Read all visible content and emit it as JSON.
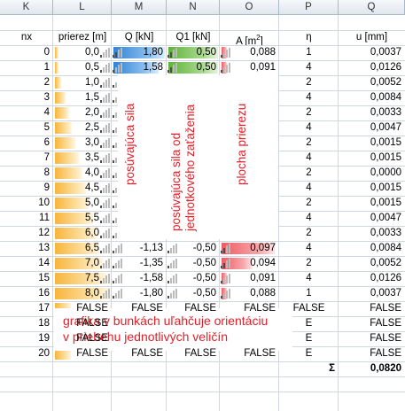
{
  "columns": [
    "K",
    "L",
    "M",
    "N",
    "O",
    "P",
    "Q"
  ],
  "headers": {
    "nx": "nx",
    "prierez": "prierez [m]",
    "q": "Q [kN]",
    "q1": "Q1 [kN]",
    "a": "A [m",
    "a_sup": "2",
    "a_end": "]",
    "eta": "η",
    "u": "u [mm]"
  },
  "rows": [
    {
      "nx": "0",
      "l": "0,0",
      "lf": 0.0,
      "q": "1,80",
      "qf": 1.0,
      "q1": "0,50",
      "q1f": 1.0,
      "a": "0,088",
      "af": 0.1,
      "p": "1",
      "u": "0,0037"
    },
    {
      "nx": "1",
      "l": "0,5",
      "lf": 0.06,
      "q": "1,58",
      "qf": 0.88,
      "q1": "0,50",
      "q1f": 1.0,
      "a": "0,091",
      "af": 0.1,
      "p": "4",
      "u": "0,0126"
    },
    {
      "nx": "2",
      "l": "1,0",
      "lf": 0.12,
      "q": "",
      "qf": 0,
      "q1": "",
      "q1f": 0,
      "a": "",
      "af": 0,
      "p": "2",
      "u": "0,0052"
    },
    {
      "nx": "3",
      "l": "1,5",
      "lf": 0.19,
      "q": "",
      "qf": 0,
      "q1": "",
      "q1f": 0,
      "a": "",
      "af": 0,
      "p": "4",
      "u": "0,0084"
    },
    {
      "nx": "4",
      "l": "2,0",
      "lf": 0.25,
      "q": "",
      "qf": 0,
      "q1": "",
      "q1f": 0,
      "a": "",
      "af": 0,
      "p": "2",
      "u": "0,0033"
    },
    {
      "nx": "5",
      "l": "2,5",
      "lf": 0.31,
      "q": "",
      "qf": 0,
      "q1": "",
      "q1f": 0,
      "a": "",
      "af": 0,
      "p": "4",
      "u": "0,0047"
    },
    {
      "nx": "6",
      "l": "3,0",
      "lf": 0.37,
      "q": "",
      "qf": 0,
      "q1": "",
      "q1f": 0,
      "a": "",
      "af": 0,
      "p": "2",
      "u": "0,0015"
    },
    {
      "nx": "7",
      "l": "3,5",
      "lf": 0.44,
      "q": "",
      "qf": 0,
      "q1": "",
      "q1f": 0,
      "a": "",
      "af": 0,
      "p": "4",
      "u": "0,0015"
    },
    {
      "nx": "8",
      "l": "4,0",
      "lf": 0.5,
      "q": "",
      "qf": 0,
      "q1": "",
      "q1f": 0,
      "a": "",
      "af": 0,
      "p": "2",
      "u": "0,0000"
    },
    {
      "nx": "9",
      "l": "4,5",
      "lf": 0.56,
      "q": "",
      "qf": 0,
      "q1": "",
      "q1f": 0,
      "a": "",
      "af": 0,
      "p": "4",
      "u": "0,0015"
    },
    {
      "nx": "10",
      "l": "5,0",
      "lf": 0.62,
      "q": "",
      "qf": 0,
      "q1": "",
      "q1f": 0,
      "a": "",
      "af": 0,
      "p": "2",
      "u": "0,0015"
    },
    {
      "nx": "11",
      "l": "5,5",
      "lf": 0.69,
      "q": "",
      "qf": 0,
      "q1": "",
      "q1f": 0,
      "a": "",
      "af": 0,
      "p": "4",
      "u": "0,0047"
    },
    {
      "nx": "12",
      "l": "6,0",
      "lf": 0.75,
      "q": "",
      "qf": 0,
      "q1": "",
      "q1f": 0,
      "a": "",
      "af": 0,
      "p": "2",
      "u": "0,0033"
    },
    {
      "nx": "13",
      "l": "6,5",
      "lf": 0.81,
      "q": "-1,13",
      "qf": 0,
      "q1": "-0,50",
      "q1f": 0,
      "a": "0,097",
      "af": 0.95,
      "p": "4",
      "u": "0,0084"
    },
    {
      "nx": "14",
      "l": "7,0",
      "lf": 0.87,
      "q": "-1,35",
      "qf": 0,
      "q1": "-0,50",
      "q1f": 0,
      "a": "0,094",
      "af": 0.55,
      "p": "2",
      "u": "0,0052"
    },
    {
      "nx": "15",
      "l": "7,5",
      "lf": 0.94,
      "q": "-1,58",
      "qf": 0,
      "q1": "-0,50",
      "q1f": 0,
      "a": "0,091",
      "af": 0.1,
      "p": "4",
      "u": "0,0126"
    },
    {
      "nx": "16",
      "l": "8,0",
      "lf": 1.0,
      "q": "-1,80",
      "qf": 0,
      "q1": "-0,50",
      "q1f": 0,
      "a": "0,088",
      "af": 0.1,
      "p": "1",
      "u": "0,0037"
    },
    {
      "nx": "17",
      "l": "FALSE",
      "lf": 0,
      "q": "FALSE",
      "qf": 0,
      "q1": "FALSE",
      "q1f": 0,
      "a": "FALSE",
      "af": 0,
      "p": "FALSE",
      "u": "FALSE"
    },
    {
      "nx": "18",
      "l": "FALSE",
      "lf": 0,
      "q": "",
      "qf": 0,
      "q1": "",
      "q1f": 0,
      "a": "",
      "af": 0,
      "p": "E",
      "u": "FALSE"
    },
    {
      "nx": "19",
      "l": "FALSE",
      "lf": 0,
      "q": "",
      "qf": 0,
      "q1": "",
      "q1f": 0,
      "a": "",
      "af": 0,
      "p": "E",
      "u": "FALSE"
    },
    {
      "nx": "20",
      "l": "FALSE",
      "lf": 0,
      "q": "FALSE",
      "qf": 0,
      "q1": "FALSE",
      "q1f": 0,
      "a": "FALSE",
      "af": 0,
      "p": "E",
      "u": "FALSE"
    }
  ],
  "sum": {
    "symbol": "Σ",
    "value": "0,0820"
  },
  "annotations": {
    "shear": "posúvajúca sila",
    "shear_unit_1": "posúvajúca sila od",
    "shear_unit_2": "jednotkového zaťaženia",
    "area": "plocha prierezu",
    "note_1": "grafika v bunkách uľahčuje orientáciu",
    "note_2": "v priebehu jednotlivých veličín"
  },
  "colors": {
    "orange": "#f7b53a",
    "blue": "#2f83d6",
    "green": "#5fb33a",
    "red": "#ef5b63",
    "label": "#e0202a"
  }
}
